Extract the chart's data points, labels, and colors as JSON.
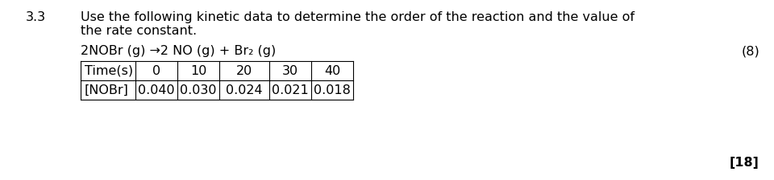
{
  "section_number": "3.3",
  "main_text_line1": "Use the following kinetic data to determine the order of the reaction and the value of",
  "main_text_line2": "the rate constant.",
  "equation": "2NOBr (g) →2 NO (g) + Br₂ (g)",
  "marks_eq": "(8)",
  "marks_total": "[18]",
  "table_headers": [
    "Time(s)",
    "0",
    "10",
    "20",
    "30",
    "40"
  ],
  "table_row2": [
    "[NOBr]",
    "0.040",
    "0.030",
    "0.024",
    "0.021",
    "0.018"
  ],
  "bg_color": "#ffffff",
  "text_color": "#000000",
  "font_size": 11.5
}
